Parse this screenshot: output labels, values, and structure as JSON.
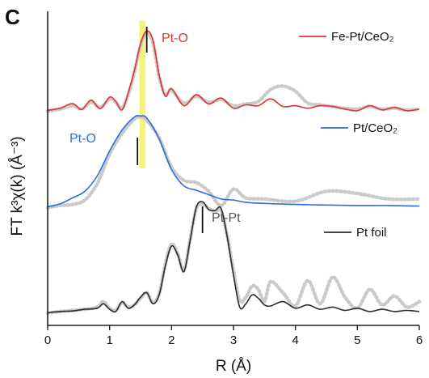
{
  "panel_label": "C",
  "chart_data": {
    "type": "line",
    "xlabel": "R (Å)",
    "ylabel": "FT k³χ(k) (Å⁻³)",
    "xlim": [
      0,
      6
    ],
    "xticks": [
      "0",
      "1",
      "2",
      "3",
      "4",
      "5",
      "6"
    ],
    "grid": false,
    "legend_placement": "right, beside each curve",
    "highlight_band": {
      "x_from": 1.48,
      "x_to": 1.58,
      "color": "#f4f47a"
    },
    "series": [
      {
        "name": "Fe-Pt/CeO₂",
        "color": "#e03434",
        "fit_color": "#c4c4c4",
        "peak_marker_x": 1.6,
        "annotation": "Pt-O",
        "annotation_color": "#e03434",
        "x": [
          0,
          0.2,
          0.4,
          0.55,
          0.7,
          0.85,
          1.0,
          1.1,
          1.2,
          1.3,
          1.4,
          1.5,
          1.6,
          1.7,
          1.8,
          1.9,
          2.0,
          2.2,
          2.4,
          2.6,
          2.8,
          3.0,
          3.2,
          3.4,
          3.6,
          3.8,
          4.0,
          4.2,
          4.4,
          4.6,
          4.8,
          5.0,
          5.2,
          5.4,
          5.6,
          5.8,
          6.0
        ],
        "y": [
          0.35,
          0.6,
          1.15,
          0.45,
          1.55,
          0.55,
          1.9,
          1.4,
          0.4,
          2.4,
          5.0,
          8.2,
          9.7,
          8.6,
          4.5,
          2.0,
          2.9,
          0.9,
          2.2,
          1.1,
          1.8,
          0.6,
          1.0,
          0.9,
          1.7,
          0.8,
          0.9,
          0.6,
          0.9,
          0.8,
          0.5,
          0.3,
          0.9,
          0.4,
          0.7,
          0.3,
          0.5
        ],
        "fit_y": [
          0.25,
          0.5,
          0.9,
          0.5,
          1.3,
          0.7,
          1.7,
          1.3,
          0.6,
          2.2,
          4.8,
          8.0,
          9.4,
          8.3,
          4.3,
          2.2,
          2.7,
          1.2,
          2.0,
          1.3,
          1.6,
          0.9,
          1.1,
          1.4,
          2.8,
          3.2,
          2.6,
          1.2,
          1.0,
          0.8,
          0.6,
          0.5,
          0.8,
          0.5,
          0.6,
          0.4,
          0.5
        ]
      },
      {
        "name": "Pt/CeO₂",
        "color": "#2b6fdc",
        "fit_color": "#c4c4c4",
        "peak_marker_x": 1.45,
        "annotation": "Pt-O",
        "annotation_color": "#2b6fdc",
        "x": [
          0,
          0.2,
          0.4,
          0.6,
          0.8,
          1.0,
          1.2,
          1.4,
          1.5,
          1.6,
          1.8,
          2.0,
          2.2,
          2.4,
          2.6,
          2.8,
          3.0,
          3.2,
          3.5,
          4.0,
          4.5,
          5.0,
          5.5,
          6.0
        ],
        "y": [
          0.2,
          0.45,
          1.0,
          1.6,
          3.0,
          5.3,
          7.2,
          8.4,
          8.5,
          8.3,
          6.4,
          3.6,
          2.1,
          1.7,
          1.3,
          0.9,
          0.8,
          0.6,
          0.5,
          0.4,
          0.35,
          0.3,
          0.3,
          0.25
        ],
        "fit_y": [
          0.1,
          0.3,
          0.4,
          0.8,
          2.3,
          5.0,
          6.9,
          8.2,
          8.4,
          8.1,
          6.5,
          3.8,
          2.6,
          2.4,
          1.6,
          0.3,
          1.8,
          1.0,
          0.9,
          0.7,
          1.6,
          1.4,
          0.9,
          0.9
        ]
      },
      {
        "name": "Pt foil",
        "color": "#2c2c2c",
        "fit_color": "#c4c4c4",
        "peak_marker_x": 2.5,
        "annotation": "Pt-Pt",
        "annotation_color": "#555555",
        "x": [
          0,
          0.2,
          0.4,
          0.6,
          0.8,
          0.9,
          1.0,
          1.1,
          1.2,
          1.3,
          1.4,
          1.5,
          1.6,
          1.7,
          1.8,
          1.9,
          2.0,
          2.1,
          2.2,
          2.3,
          2.4,
          2.5,
          2.6,
          2.7,
          2.8,
          2.9,
          3.0,
          3.1,
          3.2,
          3.3,
          3.4,
          3.5,
          3.6,
          3.8,
          4.0,
          4.2,
          4.4,
          4.6,
          4.8,
          5.0,
          5.2,
          5.4,
          5.6,
          5.8,
          6.0
        ],
        "y": [
          0.2,
          0.3,
          0.35,
          0.5,
          0.6,
          1.0,
          0.5,
          0.3,
          1.2,
          0.6,
          0.9,
          1.6,
          2.0,
          1.0,
          1.8,
          4.4,
          6.2,
          5.4,
          3.9,
          6.7,
          9.7,
          10.2,
          9.5,
          9.4,
          9.6,
          7.0,
          3.6,
          0.7,
          1.0,
          1.8,
          1.5,
          0.9,
          0.8,
          1.2,
          0.6,
          0.9,
          0.5,
          0.7,
          0.4,
          0.6,
          0.3,
          0.5,
          0.3,
          0.4,
          0.3
        ],
        "fit_y": [
          0.15,
          0.3,
          0.4,
          0.5,
          0.7,
          1.2,
          0.6,
          0.4,
          1.1,
          0.7,
          0.9,
          1.5,
          2.0,
          1.1,
          1.9,
          4.6,
          6.4,
          5.5,
          4.0,
          6.8,
          9.6,
          10.0,
          9.6,
          9.3,
          9.4,
          7.1,
          4.0,
          1.3,
          1.6,
          2.6,
          2.3,
          1.2,
          3.0,
          2.0,
          0.8,
          3.1,
          1.0,
          3.4,
          1.6,
          0.6,
          2.3,
          0.9,
          1.7,
          0.7,
          1.2
        ]
      }
    ]
  }
}
